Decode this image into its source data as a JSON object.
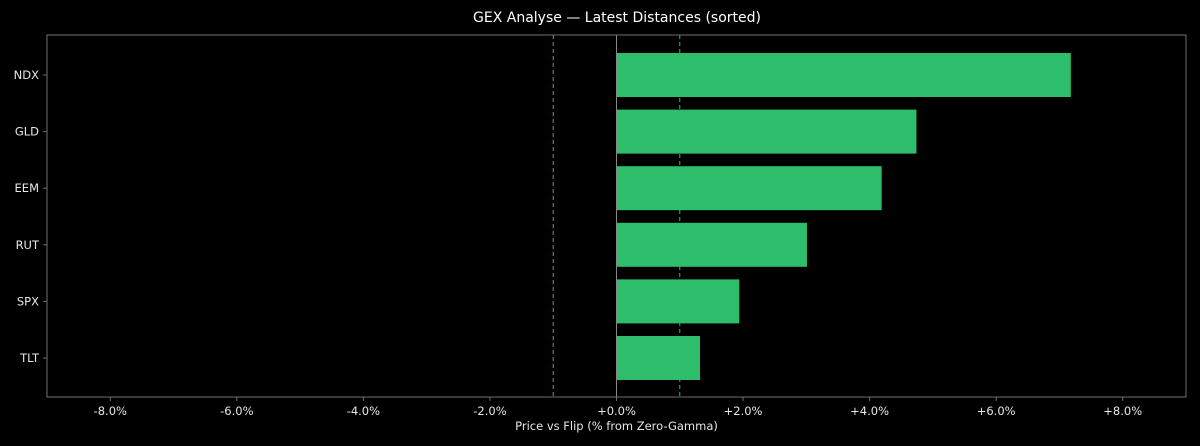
{
  "chart_data": {
    "type": "bar",
    "orientation": "horizontal",
    "title": "GEX Analyse — Latest Distances (sorted)",
    "xlabel": "Price vs Flip (% from Zero-Gamma)",
    "ylabel": "",
    "categories": [
      "NDX",
      "GLD",
      "EEM",
      "RUT",
      "SPX",
      "TLT"
    ],
    "values": [
      7.18,
      4.74,
      4.19,
      3.01,
      1.94,
      1.32
    ],
    "xlim": [
      -9.0,
      9.0
    ],
    "xticks": [
      -8,
      -6,
      -4,
      -2,
      0,
      2,
      4,
      6,
      8
    ],
    "xtick_labels": [
      "-8.0%",
      "-6.0%",
      "-4.0%",
      "-2.0%",
      "+0.0%",
      "+2.0%",
      "+4.0%",
      "+6.0%",
      "+8.0%"
    ],
    "reference_lines": [
      {
        "x": 0,
        "style": "solid",
        "color": "#888888"
      },
      {
        "x": -1,
        "style": "dashed",
        "color": "#2ebd6b"
      },
      {
        "x": 1,
        "style": "dashed",
        "color": "#2ebd6b"
      }
    ],
    "grid": false,
    "colors": {
      "background": "#000000",
      "bar": "#2ebd6b",
      "frame": "#6e6e6e",
      "text": "#e6e6e6"
    }
  }
}
